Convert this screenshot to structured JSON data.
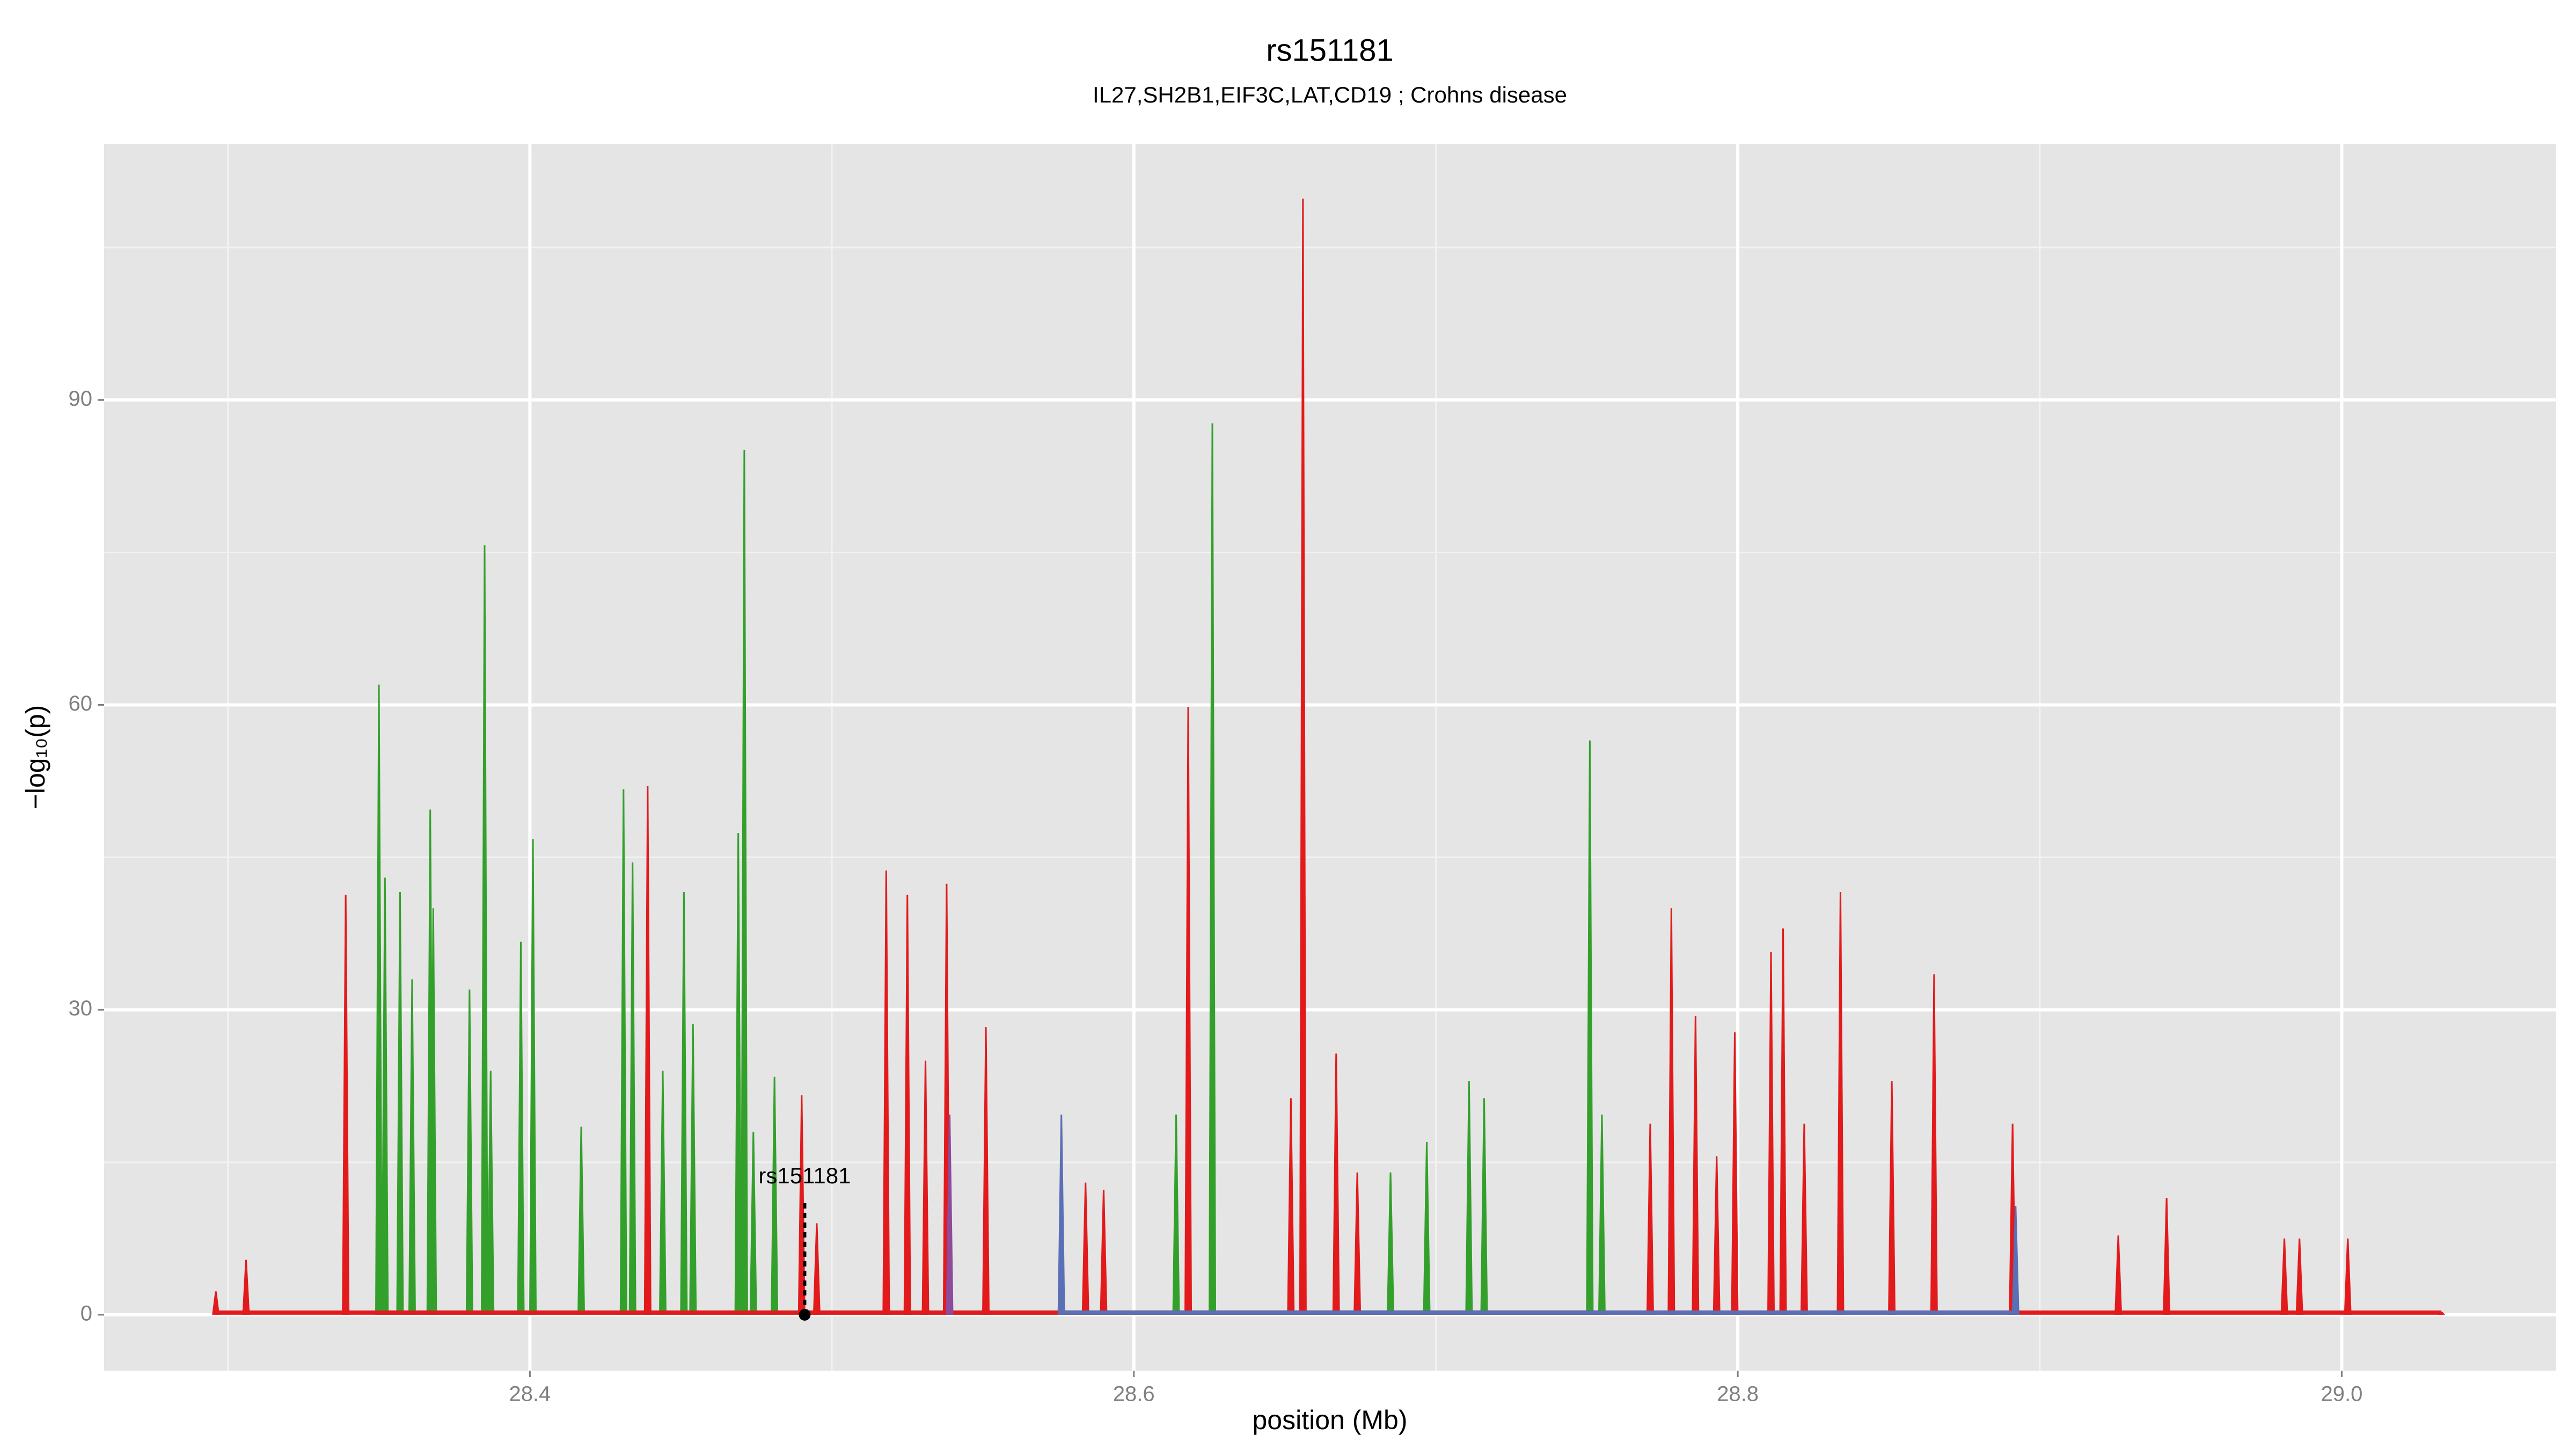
{
  "chart_data": {
    "type": "spike",
    "title": "rs151181",
    "subtitle": "IL27,SH2B1,EIF3C,LAT,CD19 ; Crohns disease",
    "x_label": "position (Mb)",
    "y_label": "−log₁₀(p)",
    "xlim": [
      28.259,
      29.071
    ],
    "ylim": [
      -5.5,
      115.2
    ],
    "xticks": [
      28.4,
      28.6,
      28.8,
      {
        "value": 29,
        "label": "29.0"
      }
    ],
    "yticks": [
      0,
      30,
      60,
      90
    ],
    "minor_xticks": [
      28.3,
      28.5,
      28.7,
      28.9
    ],
    "minor_yticks": [
      15,
      45,
      75,
      105
    ],
    "grid": true,
    "series": [
      {
        "color": "#33a02c",
        "x": [
          28.35,
          28.352,
          28.357,
          28.361,
          28.367,
          28.368,
          28.38,
          28.385,
          28.387,
          28.397,
          28.401,
          28.417,
          28.431,
          28.434,
          28.444,
          28.451,
          28.454,
          28.469,
          28.471,
          28.474,
          28.481,
          28.614,
          28.626,
          28.685,
          28.697,
          28.711,
          28.716,
          28.751,
          28.755
        ],
        "values": [
          62,
          43,
          41.6,
          33,
          49.7,
          40,
          32,
          75.7,
          24,
          36.7,
          46.8,
          18.5,
          51.7,
          44.5,
          24,
          41.6,
          28.6,
          47.4,
          85.1,
          18,
          23.4,
          19.7,
          87.7,
          14,
          17,
          23,
          21.3,
          56.5,
          19.7
        ]
      },
      {
        "color": "#e31a1c",
        "x": [
          28.296,
          28.306,
          28.339,
          28.439,
          28.49,
          28.495,
          28.518,
          28.525,
          28.531,
          28.538,
          28.551,
          28.584,
          28.59,
          28.618,
          28.652,
          28.656,
          28.667,
          28.674,
          28.771,
          28.778,
          28.786,
          28.793,
          28.799,
          28.811,
          28.815,
          28.822,
          28.834,
          28.851,
          28.865,
          28.891,
          28.926,
          28.942,
          28.981,
          28.986,
          29.002,
          29.033
        ],
        "values": [
          2.3,
          5.4,
          41.3,
          52,
          21.6,
          9,
          43.7,
          41.3,
          25,
          42.4,
          28.3,
          13,
          12.3,
          59.8,
          21.3,
          109.8,
          25.7,
          14,
          18.8,
          40,
          29.4,
          15.6,
          27.8,
          35.7,
          38,
          18.8,
          41.6,
          23,
          33.5,
          18.8,
          7.8,
          11.5,
          7.5,
          7.5,
          7.5,
          0.3
        ]
      },
      {
        "color": "#5a6fb5",
        "x": [
          28.576,
          28.892
        ],
        "values": [
          19.7,
          10.7
        ]
      },
      {
        "color": "#8e4a9b",
        "x": [
          28.539
        ],
        "values": [
          19.7
        ]
      }
    ],
    "annotation": {
      "text": "rs151181",
      "x": 28.491,
      "y": 0
    }
  }
}
